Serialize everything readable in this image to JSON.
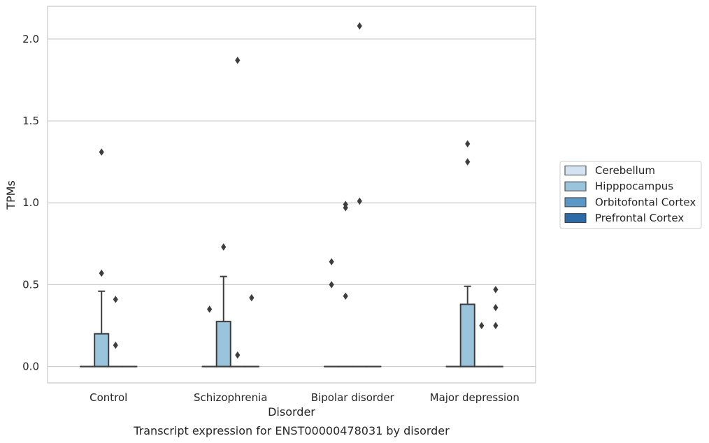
{
  "chart_data": {
    "type": "box",
    "title": "",
    "caption": "Transcript expression for ENST00000478031 by disorder",
    "xlabel": "Disorder",
    "ylabel": "TPMs",
    "ylim": [
      -0.1,
      2.2
    ],
    "yticks": [
      "0.0",
      "0.5",
      "1.0",
      "1.5",
      "2.0"
    ],
    "grid": "horizontal",
    "legend_position": "right",
    "categories": [
      "Control",
      "Schizophrenia",
      "Bipolar disorder",
      "Major depression"
    ],
    "series": [
      {
        "name": "Cerebellum",
        "color": "#d4e3f2",
        "boxes": [
          {
            "q1": 0,
            "median": 0,
            "q3": 0,
            "whisker_low": 0,
            "whisker_high": 0,
            "outliers": []
          },
          {
            "q1": 0,
            "median": 0,
            "q3": 0,
            "whisker_low": 0,
            "whisker_high": 0,
            "outliers": [
              0.35
            ]
          },
          {
            "q1": 0,
            "median": 0,
            "q3": 0,
            "whisker_low": 0,
            "whisker_high": 0,
            "outliers": [
              0.64,
              0.5
            ]
          },
          {
            "q1": 0,
            "median": 0,
            "q3": 0,
            "whisker_low": 0,
            "whisker_high": 0,
            "outliers": []
          }
        ]
      },
      {
        "name": "Hipppocampus",
        "color": "#9ac3dc",
        "boxes": [
          {
            "q1": 0,
            "median": 0,
            "q3": 0.2,
            "whisker_low": 0,
            "whisker_high": 0.46,
            "outliers": [
              1.31,
              0.57
            ]
          },
          {
            "q1": 0,
            "median": 0,
            "q3": 0.275,
            "whisker_low": 0,
            "whisker_high": 0.55,
            "outliers": [
              0.73
            ]
          },
          {
            "q1": 0,
            "median": 0,
            "q3": 0,
            "whisker_low": 0,
            "whisker_high": 0,
            "outliers": [
              0.99,
              0.97,
              0.43
            ]
          },
          {
            "q1": 0,
            "median": 0,
            "q3": 0.38,
            "whisker_low": 0,
            "whisker_high": 0.49,
            "outliers": [
              1.36,
              1.25
            ]
          }
        ]
      },
      {
        "name": "Orbitofontal Cortex",
        "color": "#5a97c6",
        "boxes": [
          {
            "q1": 0,
            "median": 0,
            "q3": 0,
            "whisker_low": 0,
            "whisker_high": 0,
            "outliers": [
              0.41,
              0.13
            ]
          },
          {
            "q1": 0,
            "median": 0,
            "q3": 0,
            "whisker_low": 0,
            "whisker_high": 0,
            "outliers": [
              1.87,
              0.07
            ]
          },
          {
            "q1": 0,
            "median": 0,
            "q3": 0,
            "whisker_low": 0,
            "whisker_high": 0,
            "outliers": [
              2.08,
              1.01
            ]
          },
          {
            "q1": 0,
            "median": 0,
            "q3": 0,
            "whisker_low": 0,
            "whisker_high": 0,
            "outliers": [
              0.25
            ]
          }
        ]
      },
      {
        "name": "Prefrontal Cortex",
        "color": "#2c6aa8",
        "boxes": [
          {
            "q1": 0,
            "median": 0,
            "q3": 0,
            "whisker_low": 0,
            "whisker_high": 0,
            "outliers": []
          },
          {
            "q1": 0,
            "median": 0,
            "q3": 0,
            "whisker_low": 0,
            "whisker_high": 0,
            "outliers": [
              0.42
            ]
          },
          {
            "q1": 0,
            "median": 0,
            "q3": 0,
            "whisker_low": 0,
            "whisker_high": 0,
            "outliers": []
          },
          {
            "q1": 0,
            "median": 0,
            "q3": 0,
            "whisker_low": 0,
            "whisker_high": 0,
            "outliers": [
              0.47,
              0.36,
              0.25
            ]
          }
        ]
      }
    ]
  }
}
